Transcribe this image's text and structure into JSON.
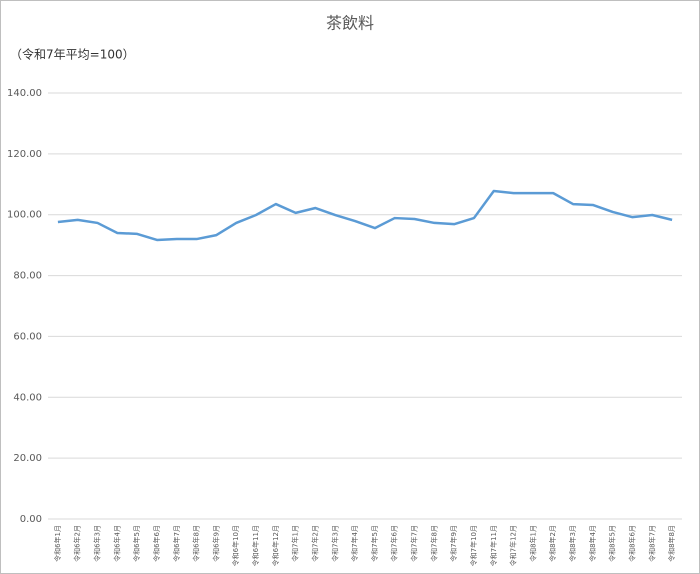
{
  "chart_data": {
    "type": "line",
    "title": "茶飲料",
    "subtitle": "（令和7年平均=100）",
    "categories": [
      "令和6年1月",
      "令和6年2月",
      "令和6年3月",
      "令和6年4月",
      "令和6年5月",
      "令和6年6月",
      "令和6年7月",
      "令和6年8月",
      "令和6年9月",
      "令和6年10月",
      "令和6年11月",
      "令和6年12月",
      "令和7年1月",
      "令和7年2月",
      "令和7年3月",
      "令和7年4月",
      "令和7年5月",
      "令和7年6月",
      "令和7年7月",
      "令和7年8月",
      "令和7年9月",
      "令和7年10月",
      "令和7年11月",
      "令和7年12月",
      "令和8年1月",
      "令和8年2月",
      "令和8年3月",
      "令和8年4月",
      "令和8年5月",
      "令和8年6月",
      "令和8年7月",
      "令和8年8月"
    ],
    "values": [
      97.6,
      98.3,
      97.3,
      94.0,
      93.7,
      91.7,
      92.0,
      92.0,
      93.3,
      97.3,
      99.9,
      103.5,
      100.6,
      102.2,
      99.9,
      97.9,
      95.6,
      98.9,
      98.6,
      97.3,
      96.9,
      98.9,
      107.8,
      107.1,
      107.1,
      107.1,
      103.5,
      103.2,
      100.9,
      99.2,
      99.9,
      98.3
    ],
    "color": "#5b9bd5",
    "ylim": [
      0,
      140
    ],
    "yticks": [
      {
        "value": 0,
        "label": "0.00"
      },
      {
        "value": 20,
        "label": "20.00"
      },
      {
        "value": 40,
        "label": "40.00"
      },
      {
        "value": 60,
        "label": "60.00"
      },
      {
        "value": 80,
        "label": "80.00"
      },
      {
        "value": 100,
        "label": "100.00"
      },
      {
        "value": 120,
        "label": "120.00"
      },
      {
        "value": 140,
        "label": "140.00"
      }
    ],
    "grid": true
  }
}
